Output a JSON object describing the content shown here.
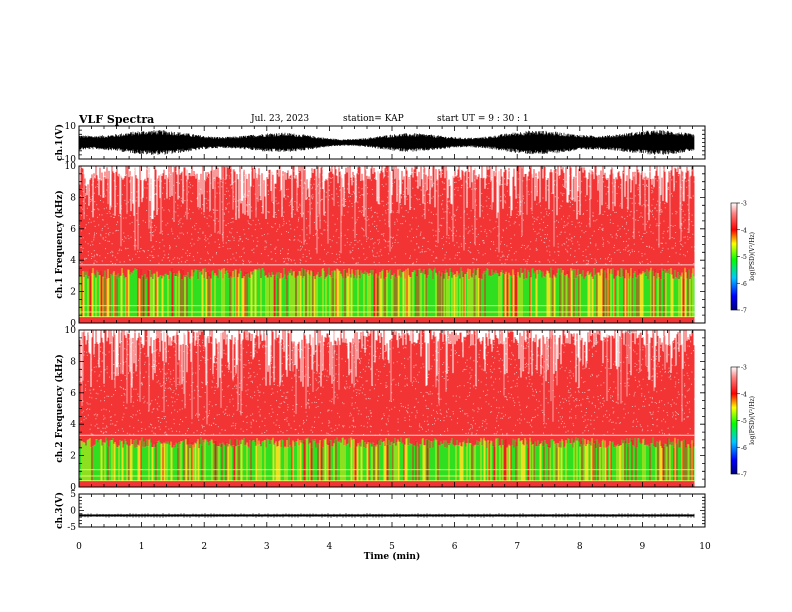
{
  "header": {
    "title": "VLF Spectra",
    "date": "Jul. 23, 2023",
    "station": "station= KAP",
    "start_ut": "start UT =  9 : 30 : 1"
  },
  "chart_data": [
    {
      "type": "line",
      "panel": "ch1-waveform",
      "ylabel": "ch.1(V)",
      "ylim": [
        -10,
        10
      ],
      "yticks": [
        "10",
        "-10"
      ],
      "xlim": [
        0,
        10
      ],
      "data_extent": [
        0,
        9.83
      ],
      "signal": "noisy waveform oscillating between about -6 and 6 V",
      "color": "#000000"
    },
    {
      "type": "heatmap",
      "panel": "ch1-spectrogram",
      "ylabel": "ch.1 Frequency (kHz)",
      "ylim": [
        0,
        10
      ],
      "yticks": [
        "0",
        "2",
        "4",
        "6",
        "8",
        "10"
      ],
      "xlim": [
        0,
        10
      ],
      "data_extent": [
        0,
        9.83
      ],
      "band_edge_khz": 3.7,
      "colorbar": {
        "label": "log(PSD)(V²/Hz)",
        "range": [
          -7,
          -3
        ],
        "ticks": [
          "-3",
          "-4",
          "-5",
          "-6",
          "-7"
        ],
        "colors": [
          "#000080",
          "#0000ff",
          "#00c8ff",
          "#00ff00",
          "#ffff00",
          "#ff0000",
          "#ffffff"
        ]
      }
    },
    {
      "type": "heatmap",
      "panel": "ch2-spectrogram",
      "ylabel": "ch.2 Frequency (kHz)",
      "ylim": [
        0,
        10
      ],
      "yticks": [
        "0",
        "2",
        "4",
        "6",
        "8",
        "10"
      ],
      "xlim": [
        0,
        10
      ],
      "data_extent": [
        0,
        9.83
      ],
      "band_edge_khz": 3.3,
      "colorbar": {
        "label": "log(PSD)(V²/Hz)",
        "range": [
          -7,
          -3
        ],
        "ticks": [
          "-3",
          "-4",
          "-5",
          "-6",
          "-7"
        ],
        "colors": [
          "#000080",
          "#0000ff",
          "#00c8ff",
          "#00ff00",
          "#ffff00",
          "#ff0000",
          "#ffffff"
        ]
      }
    },
    {
      "type": "line",
      "panel": "ch3-waveform",
      "ylabel": "ch.3(V)",
      "ylim": [
        -5,
        5
      ],
      "yticks": [
        "5",
        "0",
        "-5"
      ],
      "xlim": [
        0,
        10
      ],
      "data_extent": [
        0,
        9.83
      ],
      "signal": "narrow band around -1.5 V",
      "level_range": [
        -1.8,
        -1.2
      ],
      "color": "#000000",
      "xlabel": "Time (min)",
      "xticks": [
        "0",
        "1",
        "2",
        "3",
        "4",
        "5",
        "6",
        "7",
        "8",
        "9",
        "10"
      ]
    }
  ]
}
